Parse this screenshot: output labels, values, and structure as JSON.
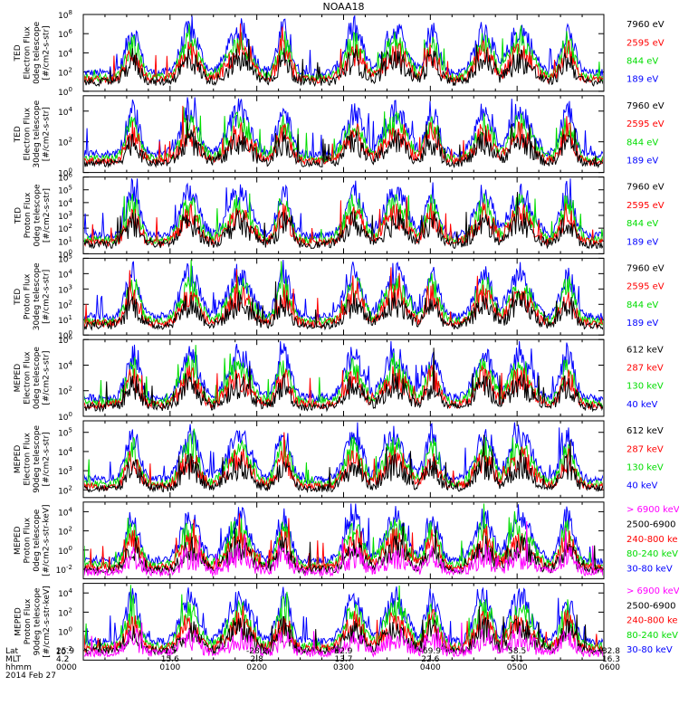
{
  "title": "NOAA18",
  "panels": [
    {
      "ylabel": [
        "TED",
        "Electron Flux",
        "0deg telescope",
        "[#/cm2-s-str]"
      ],
      "yticks": [
        {
          "exp": "0"
        },
        {
          "exp": "2"
        },
        {
          "exp": "4"
        },
        {
          "exp": "6"
        },
        {
          "exp": "8"
        }
      ],
      "ylog": [
        0,
        8
      ],
      "legend": [
        {
          "text": "7960 eV",
          "color": "#000000"
        },
        {
          "text": "2595 eV",
          "color": "#ff0000"
        },
        {
          "text": "844 eV",
          "color": "#00dd00"
        },
        {
          "text": "189 eV",
          "color": "#0000ff"
        }
      ]
    },
    {
      "ylabel": [
        "TED",
        "Electron Flux",
        "30deg telescope",
        "[#/cm2-s-str]"
      ],
      "yticks": [
        {
          "exp": "0"
        },
        {
          "exp": "2"
        },
        {
          "exp": "4"
        },
        {
          "exp": "6"
        }
      ],
      "ylog": [
        0,
        5
      ],
      "legend": [
        {
          "text": "7960 eV",
          "color": "#000000"
        },
        {
          "text": "2595 eV",
          "color": "#ff0000"
        },
        {
          "text": "844 eV",
          "color": "#00dd00"
        },
        {
          "text": "189 eV",
          "color": "#0000ff"
        }
      ]
    },
    {
      "ylabel": [
        "TED",
        "Proton Flux",
        "0deg telescope",
        "[#/cm2-s-str]"
      ],
      "yticks": [
        {
          "exp": "0"
        },
        {
          "exp": "1"
        },
        {
          "exp": "2"
        },
        {
          "exp": "3"
        },
        {
          "exp": "4"
        },
        {
          "exp": "5"
        },
        {
          "exp": "6"
        }
      ],
      "ylog": [
        0,
        6
      ],
      "legend": [
        {
          "text": "7960 eV",
          "color": "#000000"
        },
        {
          "text": "2595 eV",
          "color": "#ff0000"
        },
        {
          "text": "844 eV",
          "color": "#00dd00"
        },
        {
          "text": "189 eV",
          "color": "#0000ff"
        }
      ]
    },
    {
      "ylabel": [
        "TED",
        "Proton Flux",
        "30deg telescope",
        "[#/cm2-s-str]"
      ],
      "yticks": [
        {
          "exp": "0"
        },
        {
          "exp": "1"
        },
        {
          "exp": "2"
        },
        {
          "exp": "3"
        },
        {
          "exp": "4"
        },
        {
          "exp": "5"
        }
      ],
      "ylog": [
        0,
        5
      ],
      "legend": [
        {
          "text": "7960 eV",
          "color": "#000000"
        },
        {
          "text": "2595 eV",
          "color": "#ff0000"
        },
        {
          "text": "844 eV",
          "color": "#00dd00"
        },
        {
          "text": "189 eV",
          "color": "#0000ff"
        }
      ]
    },
    {
      "ylabel": [
        "MEPED",
        "Electron Flux",
        "0deg telescope",
        "[#/cm2-s-str]"
      ],
      "yticks": [
        {
          "exp": "0"
        },
        {
          "exp": "2"
        },
        {
          "exp": "4"
        },
        {
          "exp": "6"
        }
      ],
      "ylog": [
        0,
        6
      ],
      "legend": [
        {
          "text": "612 keV",
          "color": "#000000"
        },
        {
          "text": "287 keV",
          "color": "#ff0000"
        },
        {
          "text": "130 keV",
          "color": "#00dd00"
        },
        {
          "text": "40 keV",
          "color": "#0000ff"
        }
      ]
    },
    {
      "ylabel": [
        "MEPED",
        "Electron Flux",
        "90deg telescope",
        "[#/cm2-s-str]"
      ],
      "yticks": [
        {
          "exp": "2"
        },
        {
          "exp": "3"
        },
        {
          "exp": "4"
        },
        {
          "exp": "5"
        }
      ],
      "ylog": [
        1.6,
        5.6
      ],
      "legend": [
        {
          "text": "612 keV",
          "color": "#000000"
        },
        {
          "text": "287 keV",
          "color": "#ff0000"
        },
        {
          "text": "130 keV",
          "color": "#00dd00"
        },
        {
          "text": "40 keV",
          "color": "#0000ff"
        }
      ]
    },
    {
      "ylabel": [
        "MEPED",
        "Proton Flux",
        "0deg telescope",
        "[#/cm2-s-str-keV]"
      ],
      "yticks": [
        {
          "exp": "-2"
        },
        {
          "exp": "0"
        },
        {
          "exp": "2"
        },
        {
          "exp": "4"
        }
      ],
      "ylog": [
        -3,
        5
      ],
      "legend": [
        {
          "text": "> 6900 keV",
          "color": "#ff00ff"
        },
        {
          "text": "2500-6900",
          "color": "#000000"
        },
        {
          "text": "240-800 ke",
          "color": "#ff0000"
        },
        {
          "text": "80-240 keV",
          "color": "#00dd00"
        },
        {
          "text": "30-80 keV",
          "color": "#0000ff"
        }
      ]
    },
    {
      "ylabel": [
        "MEPED",
        "Proton Flux",
        "90deg telescope",
        "[#/cm2-s-str-keV]"
      ],
      "yticks": [
        {
          "exp": "-2"
        },
        {
          "exp": "0"
        },
        {
          "exp": "2"
        },
        {
          "exp": "4"
        }
      ],
      "ylog": [
        -3,
        5
      ],
      "legend": [
        {
          "text": "> 6900 keV",
          "color": "#ff00ff"
        },
        {
          "text": "2500-6900",
          "color": "#000000"
        },
        {
          "text": "240-800 ke",
          "color": "#ff0000"
        },
        {
          "text": "80-240 keV",
          "color": "#00dd00"
        },
        {
          "text": "30-80 keV",
          "color": "#0000ff"
        }
      ]
    }
  ],
  "footer": {
    "row_labels": [
      "Lat",
      "MLT",
      "hhmm"
    ],
    "date": "2014 Feb 27",
    "columns": [
      {
        "lat": "25.9",
        "mlt": "4.2",
        "hhmm": "0000"
      },
      {
        "lat": "1.5",
        "mlt": "15.6",
        "hhmm": "0100"
      },
      {
        "lat": "-28.2",
        "mlt": "2.8",
        "hhmm": "0200"
      },
      {
        "lat": "52.9",
        "mlt": "13.7",
        "hhmm": "0300"
      },
      {
        "lat": "-69.9",
        "mlt": "22.6",
        "hhmm": "0400"
      },
      {
        "lat": "58.5",
        "mlt": "5.1",
        "hhmm": "0500"
      },
      {
        "lat": "-32.8",
        "mlt": "16.3",
        "hhmm": "0600"
      }
    ]
  },
  "chart_data": {
    "type": "line",
    "title": "NOAA18",
    "x_ticks": [
      "0000",
      "0100",
      "0200",
      "0300",
      "0400",
      "0500",
      "0600"
    ],
    "x_range": [
      "0000",
      "0600"
    ],
    "y_scale": "log",
    "panels": [
      {
        "name": "TED Electron Flux 0deg telescope",
        "ylim_log10": [
          0,
          8
        ],
        "series": [
          "7960 eV",
          "2595 eV",
          "844 eV",
          "189 eV"
        ]
      },
      {
        "name": "TED Electron Flux 30deg telescope",
        "ylim_log10": [
          0,
          5
        ],
        "series": [
          "7960 eV",
          "2595 eV",
          "844 eV",
          "189 eV"
        ]
      },
      {
        "name": "TED Proton Flux 0deg telescope",
        "ylim_log10": [
          0,
          6
        ],
        "series": [
          "7960 eV",
          "2595 eV",
          "844 eV",
          "189 eV"
        ]
      },
      {
        "name": "TED Proton Flux 30deg telescope",
        "ylim_log10": [
          0,
          5
        ],
        "series": [
          "7960 eV",
          "2595 eV",
          "844 eV",
          "189 eV"
        ]
      },
      {
        "name": "MEPED Electron Flux 0deg telescope",
        "ylim_log10": [
          0,
          6
        ],
        "series": [
          "612 keV",
          "287 keV",
          "130 keV",
          "40 keV"
        ]
      },
      {
        "name": "MEPED Electron Flux 90deg telescope",
        "ylim_log10": [
          1.6,
          5.6
        ],
        "series": [
          "612 keV",
          "287 keV",
          "130 keV",
          "40 keV"
        ]
      },
      {
        "name": "MEPED Proton Flux 0deg telescope",
        "ylim_log10": [
          -3,
          5
        ],
        "series": [
          "> 6900 keV",
          "2500-6900",
          "240-800 keV",
          "80-240 keV",
          "30-80 keV"
        ]
      },
      {
        "name": "MEPED Proton Flux 90deg telescope",
        "ylim_log10": [
          -3,
          5
        ],
        "series": [
          "> 6900 keV",
          "2500-6900",
          "240-800 keV",
          "80-240 keV",
          "30-80 keV"
        ]
      }
    ]
  }
}
